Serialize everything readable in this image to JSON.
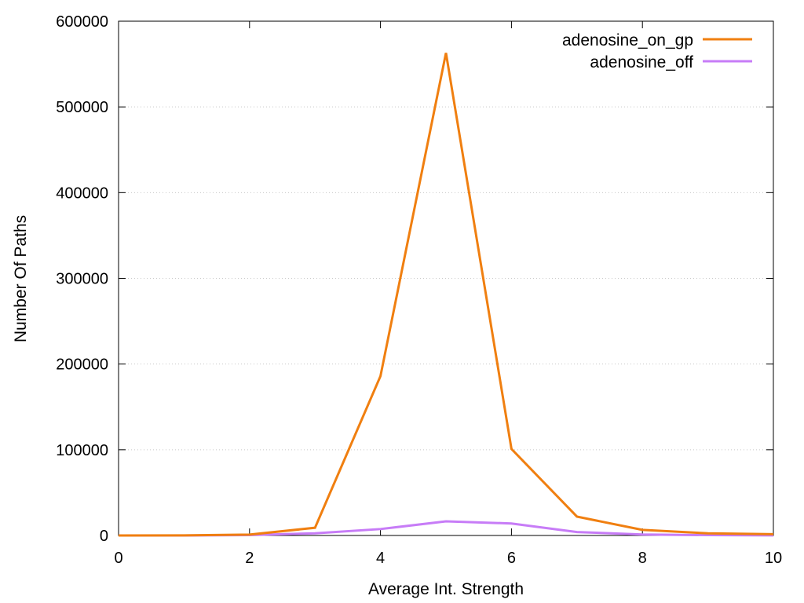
{
  "chart_data": {
    "type": "line",
    "title": "",
    "xlabel": "Average Int. Strength",
    "ylabel": "Number Of Paths",
    "xlim": [
      0,
      10
    ],
    "ylim": [
      0,
      600000
    ],
    "xticks": [
      0,
      2,
      4,
      6,
      8,
      10
    ],
    "yticks": [
      0,
      100000,
      200000,
      300000,
      400000,
      500000,
      600000
    ],
    "grid": true,
    "legend_position": "top-right",
    "x": [
      0,
      1,
      2,
      3,
      4,
      5,
      6,
      7,
      8,
      9,
      10
    ],
    "series": [
      {
        "name": "adenosine_on_gp",
        "color": "#f07f10",
        "values": [
          0,
          100,
          1000,
          9000,
          186000,
          563000,
          101000,
          22000,
          6500,
          2500,
          1500
        ]
      },
      {
        "name": "adenosine_off",
        "color": "#c77cf7",
        "values": [
          0,
          50,
          500,
          2500,
          7500,
          16500,
          14000,
          4000,
          1200,
          400,
          100
        ]
      }
    ]
  }
}
